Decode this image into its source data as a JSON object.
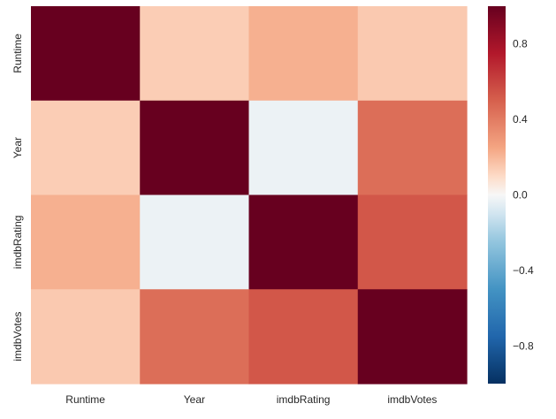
{
  "chart_data": {
    "type": "heatmap",
    "title": "",
    "xlabel": "",
    "ylabel": "",
    "x_categories": [
      "Runtime",
      "Year",
      "imdbRating",
      "imdbVotes"
    ],
    "y_categories": [
      "Runtime",
      "Year",
      "imdbRating",
      "imdbVotes"
    ],
    "values": [
      [
        1.0,
        0.14,
        0.22,
        0.15
      ],
      [
        0.14,
        1.0,
        -0.03,
        0.45
      ],
      [
        0.22,
        -0.03,
        1.0,
        0.53
      ],
      [
        0.15,
        0.45,
        0.53,
        1.0
      ]
    ],
    "colorbar": {
      "vmin": -1.0,
      "vmax": 1.0,
      "ticks": [
        0.8,
        0.4,
        0.0,
        -0.4,
        -0.8
      ],
      "tick_labels": [
        "0.8",
        "0.4",
        "0.0",
        "−0.4",
        "−0.8"
      ]
    },
    "colormap": "RdBu_r",
    "grid": false
  }
}
